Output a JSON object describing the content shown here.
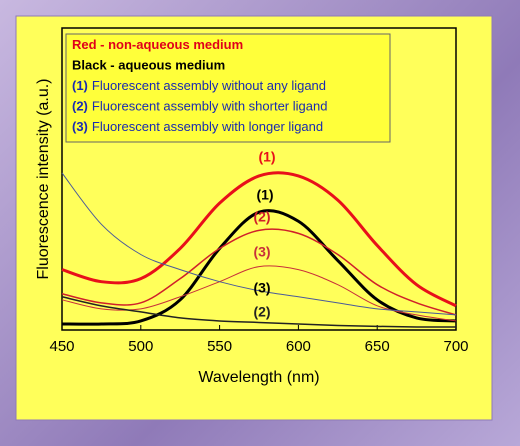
{
  "chart_data": {
    "type": "line",
    "x_label": "Wavelength (nm)",
    "y_label": "Fluorescence intensity (a.u.)",
    "x": [
      450,
      475,
      500,
      525,
      550,
      575,
      600,
      625,
      650,
      675,
      700
    ],
    "xlim": [
      450,
      700
    ],
    "xticks": [
      450,
      500,
      550,
      600,
      650,
      700
    ],
    "ylim": [
      0,
      100
    ],
    "legend_lines": [
      {
        "text": "Red - non-aqueous medium",
        "color": "#e0001a"
      },
      {
        "text": "Black - aqueous medium",
        "color": "#000000"
      },
      {
        "key": "(1)",
        "text": "Fluorescent assembly without any ligand",
        "color": "#1a2bb0"
      },
      {
        "key": "(2)",
        "text": "Fluorescent assembly with shorter ligand",
        "color": "#1a2bb0"
      },
      {
        "key": "(3)",
        "text": "Fluorescent assembly with longer ligand",
        "color": "#1a2bb0"
      }
    ],
    "series": [
      {
        "name": "(1)",
        "color": "#e8101a",
        "width": 3,
        "values": [
          20,
          16,
          17,
          27,
          42,
          51,
          51,
          43,
          28,
          15,
          8
        ]
      },
      {
        "name": "(1)",
        "color": "#000000",
        "width": 3,
        "values": [
          2,
          2,
          3,
          10,
          27,
          39,
          36,
          23,
          10,
          4,
          3
        ]
      },
      {
        "name": "(2)",
        "color": "#d0202a",
        "width": 1.5,
        "values": [
          12,
          9,
          9,
          17,
          27,
          33,
          32,
          25,
          15,
          9,
          5
        ]
      },
      {
        "name": "(3)",
        "color": "#c8303a",
        "width": 1,
        "values": [
          10,
          7,
          7,
          11,
          16,
          21,
          20,
          15,
          8,
          5,
          3
        ]
      },
      {
        "name": "(3)",
        "color": "#4a5a9a",
        "width": 1,
        "values": [
          52,
          35,
          25,
          20,
          16,
          13,
          11,
          9,
          7,
          6,
          5
        ]
      },
      {
        "name": "(2)",
        "color": "#222222",
        "width": 1.5,
        "values": [
          11,
          8,
          6,
          4,
          3,
          2.5,
          2,
          1.5,
          1.2,
          1,
          1
        ]
      }
    ]
  }
}
